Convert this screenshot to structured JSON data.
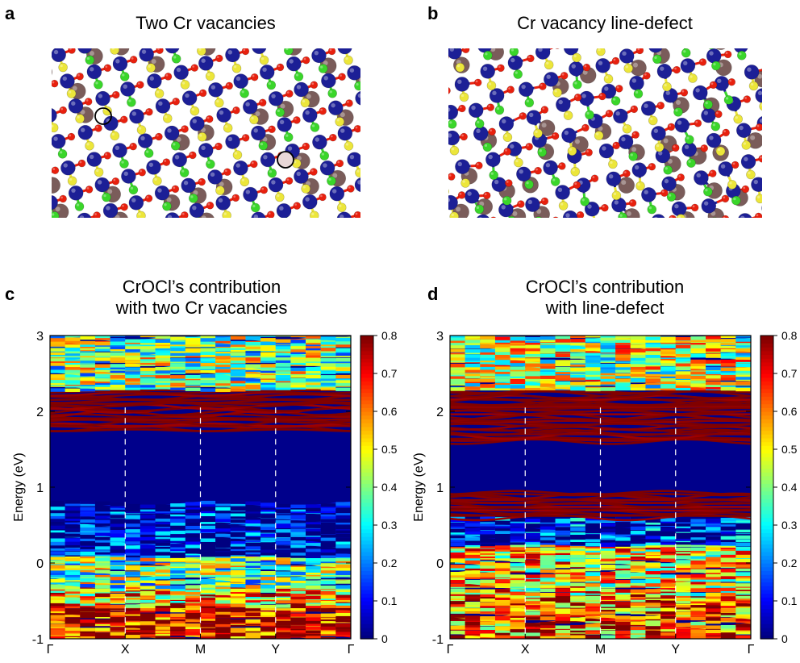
{
  "panels": {
    "a": {
      "letter": "a",
      "title": "Two Cr vacancies"
    },
    "b": {
      "letter": "b",
      "title": "Cr vacancy line-defect"
    },
    "c": {
      "letter": "c",
      "title_line1": "CrOCl’s contribution",
      "title_line2": "with two Cr vacancies"
    },
    "d": {
      "letter": "d",
      "title_line1": "CrOCl’s contribution",
      "title_line2": "with line-defect"
    }
  },
  "atom_colors": {
    "cr": "#1c1f96",
    "o": "#e8200e",
    "cl": "#3ad62a",
    "s": "#ece63a",
    "m": "#7a5c5a",
    "vacancy": "#e9d8d8",
    "background": "#ffffff"
  },
  "chart_data": [
    {
      "type": "heatmap",
      "panel": "c",
      "title": "CrOCl’s contribution with two Cr vacancies",
      "ylabel": "Energy (eV)",
      "xlabel": "",
      "x_ticks": [
        "Γ",
        "X",
        "M",
        "Y",
        "Γ"
      ],
      "y_ticks": [
        "-1",
        "0",
        "1",
        "2",
        "3"
      ],
      "ylim": [
        -1,
        3
      ],
      "colorbar": {
        "ticks": [
          "0",
          "0.1",
          "0.2",
          "0.3",
          "0.4",
          "0.5",
          "0.6",
          "0.7",
          "0.8"
        ],
        "range": [
          0,
          0.8
        ]
      },
      "gap_eV": [
        0.9,
        1.75
      ],
      "band_groups": [
        {
          "energy_range": [
            -1.0,
            -0.55
          ],
          "weight": 0.72
        },
        {
          "energy_range": [
            -0.55,
            -0.3
          ],
          "weight": 0.55
        },
        {
          "energy_range": [
            -0.3,
            0.1
          ],
          "weight": 0.38
        },
        {
          "energy_range": [
            0.1,
            0.8
          ],
          "weight": 0.05
        },
        {
          "energy_range": [
            1.75,
            2.3
          ],
          "weight": 0.8
        },
        {
          "energy_range": [
            2.3,
            3.0
          ],
          "weight": 0.4
        }
      ]
    },
    {
      "type": "heatmap",
      "panel": "d",
      "title": "CrOCl’s contribution with line-defect",
      "ylabel": "Energy (eV)",
      "xlabel": "",
      "x_ticks": [
        "Γ",
        "X",
        "M",
        "Y",
        "Γ"
      ],
      "y_ticks": [
        "-1",
        "0",
        "1",
        "2",
        "3"
      ],
      "ylim": [
        -1,
        3
      ],
      "colorbar": {
        "ticks": [
          "0",
          "0.1",
          "0.2",
          "0.3",
          "0.4",
          "0.5",
          "0.6",
          "0.7",
          "0.8"
        ],
        "range": [
          0,
          0.8
        ]
      },
      "gap_eV": [
        1.0,
        1.6
      ],
      "band_groups": [
        {
          "energy_range": [
            -1.0,
            -0.4
          ],
          "weight": 0.62
        },
        {
          "energy_range": [
            -0.4,
            0.25
          ],
          "weight": 0.52
        },
        {
          "energy_range": [
            0.25,
            0.6
          ],
          "weight": 0.1
        },
        {
          "energy_range": [
            0.6,
            0.95
          ],
          "weight": 0.8
        },
        {
          "energy_range": [
            1.6,
            2.3
          ],
          "weight": 0.8
        },
        {
          "energy_range": [
            2.3,
            3.0
          ],
          "weight": 0.45
        }
      ]
    }
  ]
}
